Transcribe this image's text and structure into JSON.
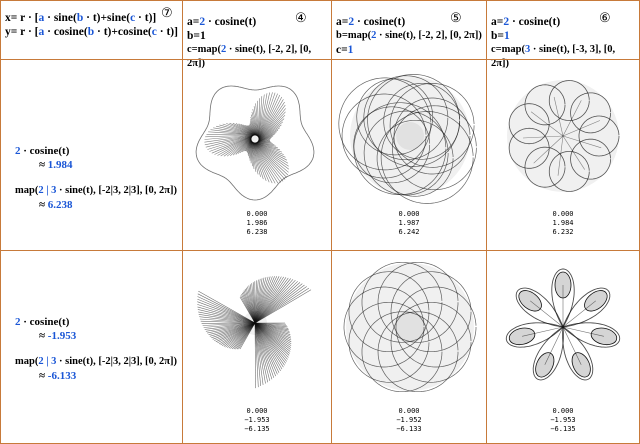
{
  "header": {
    "formula_x_prefix": "x= r · [",
    "formula_x_a": "a",
    "formula_x_mid": " · sine(",
    "formula_x_b": "b",
    "formula_x_mid2": " · t)+sine(",
    "formula_x_c": "c",
    "formula_x_end": " · t)]",
    "formula_y_prefix": "y= r · [",
    "formula_y_a": "a",
    "formula_y_mid": " · cosine(",
    "formula_y_b": "b",
    "formula_y_mid2": " · t)+cosine(",
    "formula_y_c": "c",
    "formula_y_end": " · t)]",
    "mark": "⑦"
  },
  "columns": [
    {
      "mark": "④",
      "a_prefix": "a=",
      "a_num": "2",
      "a_rest": " · cosine(t)",
      "b_line": "b=1",
      "c_prefix": "c=map(",
      "c_num": "2",
      "c_rest": " · sine(t), [-2, 2], [0, 2π])"
    },
    {
      "mark": "⑤",
      "a_prefix": "a=",
      "a_num": "2",
      "a_rest": " · cosine(t)",
      "b_prefix": "b=map(",
      "b_num": "2",
      "b_rest": " · sine(t), [-2, 2], [0, 2π])",
      "c_prefix": "c=",
      "c_num": "1"
    },
    {
      "mark": "⑥",
      "a_prefix": "a=",
      "a_num": "2",
      "a_rest": " · cosine(t)",
      "b_prefix": "b=",
      "b_num": "1",
      "c_prefix": "c=map(",
      "c_num": "3",
      "c_rest": " · sine(t), [-3, 3], [0, 2π])"
    }
  ],
  "rows": [
    {
      "left_a_num": "2",
      "left_a_rest": " · cosine(t)",
      "left_a_approx": "≈ ",
      "left_a_val": "1.984",
      "left_b_prefix": "map(",
      "left_b_num": "2 | 3",
      "left_b_rest": " · sine(t), [-2|3, 2|3], [0, 2π])",
      "left_b_approx": "≈ ",
      "left_b_val": "6.238",
      "cells": [
        {
          "v1": "0.000",
          "v2": "1.986",
          "v3": "6.238"
        },
        {
          "v1": "0.000",
          "v2": "1.987",
          "v3": "6.242"
        },
        {
          "v1": "0.000",
          "v2": "1.984",
          "v3": "6.232"
        }
      ]
    },
    {
      "left_a_num": "2",
      "left_a_rest": " · cosine(t)",
      "left_a_approx": "≈ ",
      "left_a_val": "-1.953",
      "left_b_prefix": "map(",
      "left_b_num": "2 | 3",
      "left_b_rest": " · sine(t), [-2|3, 2|3], [0, 2π])",
      "left_b_approx": "≈ ",
      "left_b_val": "-6.133",
      "cells": [
        {
          "v1": "0.000",
          "v2": "−1.953",
          "v3": "−6.135"
        },
        {
          "v1": "0.000",
          "v2": "−1.952",
          "v3": "−6.133"
        },
        {
          "v1": "0.000",
          "v2": "−1.953",
          "v3": "−6.135"
        }
      ]
    }
  ],
  "colors": {
    "border": "#c77a3a",
    "accent": "#1a56d6"
  }
}
